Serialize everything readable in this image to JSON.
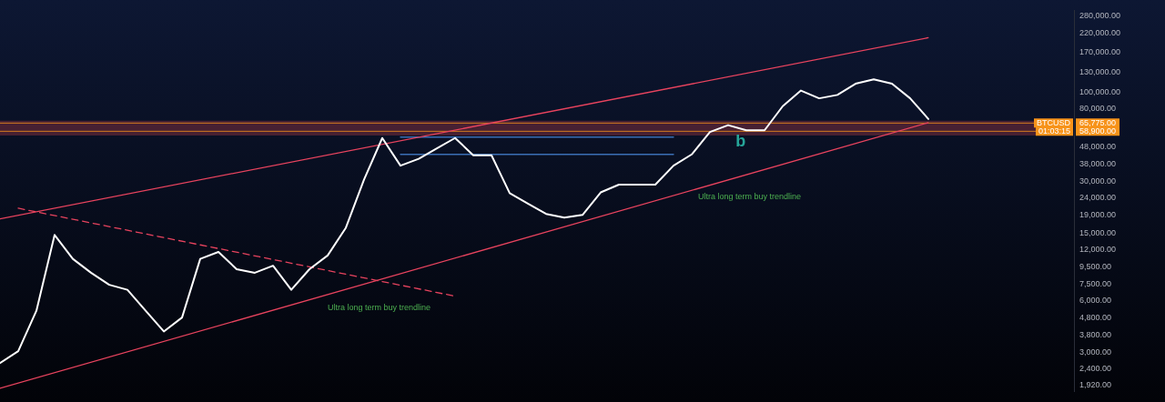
{
  "chart_data": {
    "type": "line",
    "categories": [
      null,
      null,
      null,
      null,
      null,
      null,
      null,
      null,
      null,
      null,
      null,
      null,
      null,
      null,
      null,
      null,
      null,
      null,
      null,
      null,
      null,
      null,
      null,
      null,
      null,
      null,
      null,
      null,
      null,
      null,
      null,
      null,
      null,
      null,
      null,
      null,
      null,
      null,
      null,
      null,
      null,
      null,
      null,
      null,
      null,
      null,
      null,
      null,
      null,
      null,
      null,
      null
    ],
    "series": [
      {
        "color": "#ffffff",
        "values": [
          2600,
          3050,
          5260,
          14600,
          10570,
          8770,
          7460,
          6970,
          5260,
          3980,
          4800,
          10570,
          11600,
          9200,
          8770,
          9640,
          6970,
          9200,
          11070,
          16070,
          30760,
          53800,
          37070,
          40640,
          46770,
          53800,
          42660,
          42660,
          25590,
          22230,
          19360,
          18450,
          19100,
          25880,
          28710,
          28710,
          28710,
          37070,
          43150,
          58340,
          63970,
          59700,
          59700,
          82600,
          101900,
          91800,
          96100,
          111700,
          118600,
          111700,
          91800,
          69500
        ]
      },
      {
        "type": "line",
        "color": "#e8435e",
        "values": [
          18100,
          null,
          null,
          null,
          null,
          null,
          null,
          null,
          null,
          null,
          null,
          null,
          null,
          null,
          null,
          null,
          null,
          null,
          null,
          null,
          null,
          null,
          null,
          null,
          null,
          null,
          null,
          null,
          null,
          null,
          null,
          null,
          null,
          null,
          null,
          null,
          null,
          null,
          null,
          null,
          null,
          null,
          null,
          null,
          null,
          null,
          null,
          null,
          null,
          null,
          null,
          207600
        ]
      },
      {
        "type": "line",
        "color": "#e8435e",
        "values": [
          1850,
          null,
          null,
          null,
          null,
          null,
          null,
          null,
          null,
          null,
          null,
          null,
          null,
          null,
          null,
          null,
          null,
          null,
          null,
          null,
          null,
          null,
          null,
          null,
          null,
          null,
          null,
          null,
          null,
          null,
          null,
          null,
          null,
          null,
          null,
          null,
          null,
          null,
          null,
          null,
          null,
          null,
          null,
          null,
          null,
          null,
          null,
          null,
          null,
          null,
          null,
          66200
        ]
      },
      {
        "type": "line",
        "line_style": "dashed",
        "color": "#e8435e",
        "values": [
          null,
          20900,
          null,
          null,
          null,
          null,
          null,
          null,
          null,
          null,
          null,
          null,
          null,
          null,
          null,
          null,
          null,
          null,
          null,
          null,
          null,
          null,
          null,
          null,
          null,
          6400,
          null,
          null,
          null,
          null,
          null,
          null,
          null,
          null,
          null,
          null,
          null,
          null,
          null,
          null,
          null,
          null,
          null,
          null,
          null,
          null,
          null,
          null,
          null,
          null,
          null,
          null
        ]
      },
      {
        "type": "line",
        "color": "#3b6fb5",
        "values": [
          null,
          null,
          null,
          null,
          null,
          null,
          null,
          null,
          null,
          null,
          null,
          null,
          null,
          null,
          null,
          null,
          null,
          null,
          null,
          null,
          null,
          null,
          54450,
          null,
          null,
          null,
          null,
          null,
          null,
          null,
          null,
          null,
          null,
          null,
          null,
          null,
          null,
          54450,
          null,
          null,
          null,
          null,
          null,
          null,
          null,
          null,
          null,
          null,
          null,
          null,
          null,
          null
        ]
      },
      {
        "type": "line",
        "color": "#3b6fb5",
        "values": [
          null,
          null,
          null,
          null,
          null,
          null,
          null,
          null,
          null,
          null,
          null,
          null,
          null,
          null,
          null,
          null,
          null,
          null,
          null,
          null,
          null,
          null,
          43150,
          null,
          null,
          null,
          null,
          null,
          null,
          null,
          null,
          null,
          null,
          null,
          null,
          null,
          null,
          43150,
          null,
          null,
          null,
          null,
          null,
          null,
          null,
          null,
          null,
          null,
          null,
          null,
          null,
          null
        ]
      }
    ],
    "log": "y",
    "ylim": [
      1770,
      300000
    ],
    "yticks": [
      {
        "value": 1920,
        "label": "1,920.00"
      },
      {
        "value": 2400,
        "label": "2,400.00"
      },
      {
        "value": 3000,
        "label": "3,000.00"
      },
      {
        "value": 3800,
        "label": "3,800.00"
      },
      {
        "value": 4800,
        "label": "4,800.00"
      },
      {
        "value": 6000,
        "label": "6,000.00"
      },
      {
        "value": 7500,
        "label": "7,500.00"
      },
      {
        "value": 9500,
        "label": "9,500.00"
      },
      {
        "value": 12000,
        "label": "12,000.00"
      },
      {
        "value": 15000,
        "label": "15,000.00"
      },
      {
        "value": 19000,
        "label": "19,000.00"
      },
      {
        "value": 24000,
        "label": "24,000.00"
      },
      {
        "value": 30000,
        "label": "30,000.00"
      },
      {
        "value": 38000,
        "label": "38,000.00"
      },
      {
        "value": 48000,
        "label": "48,000.00"
      },
      {
        "value": 80000,
        "label": "80,000.00"
      },
      {
        "value": 100000,
        "label": "100,000.00"
      },
      {
        "value": 130000,
        "label": "130,000.00"
      },
      {
        "value": 170000,
        "label": "170,000.00"
      },
      {
        "value": 220000,
        "label": "220,000.00"
      },
      {
        "value": 280000,
        "label": "280,000.00"
      }
    ],
    "bands": [
      {
        "axis": "y",
        "from": 55700,
        "to": 67800,
        "color": "#7a2e3e"
      }
    ],
    "ref_lines": [
      {
        "axis": "y",
        "value": 65775,
        "label": "65,775.00",
        "color": "#f7931a"
      },
      {
        "axis": "y",
        "value": 58900,
        "label": "58,900.00",
        "color": "#f7931a"
      }
    ],
    "annotations": [
      "Ultra long term buy trendline",
      "Ultra long term buy trendline",
      "b",
      "BTCUSD",
      "01:03:15"
    ],
    "legend": false,
    "grid": false
  }
}
